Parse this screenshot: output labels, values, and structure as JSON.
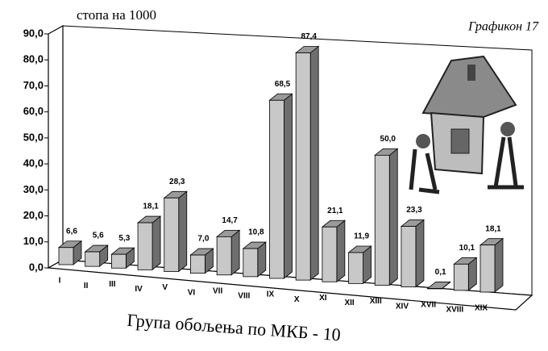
{
  "chart_data": {
    "type": "bar",
    "ylabel": "стопа на 1000",
    "annotation": "Графикон 17",
    "xlabel": "Група обољења по МКБ - 10",
    "categories": [
      "I",
      "II",
      "III",
      "IV",
      "V",
      "VI",
      "VII",
      "VIII",
      "IX",
      "X",
      "XI",
      "XII",
      "XIII",
      "XIV",
      "XVII",
      "XVIII",
      "XIX"
    ],
    "values": [
      6.6,
      5.6,
      5.3,
      18.1,
      28.3,
      7.0,
      14.7,
      10.8,
      68.5,
      87.4,
      21.1,
      11.9,
      50.0,
      23.3,
      0.1,
      10.1,
      18.1
    ],
    "value_labels": [
      "6,6",
      "5,6",
      "5,3",
      "18,1",
      "28,3",
      "7,0",
      "14,7",
      "10,8",
      "68,5",
      "87,4",
      "21,1",
      "11,9",
      "50,0",
      "23,3",
      "0,1",
      "10,1",
      "18,1"
    ],
    "color": "#c8c8c8",
    "ylim": [
      0,
      90
    ],
    "yticks": [
      {
        "value": 0,
        "label": "0,0"
      },
      {
        "value": 10,
        "label": "10,0"
      },
      {
        "value": 20,
        "label": "20,0"
      },
      {
        "value": 30,
        "label": "30,0"
      },
      {
        "value": 40,
        "label": "40,0"
      },
      {
        "value": 50,
        "label": "50,0"
      },
      {
        "value": 60,
        "label": "60,0"
      },
      {
        "value": 70,
        "label": "70,0"
      },
      {
        "value": 80,
        "label": "80,0"
      },
      {
        "value": 90,
        "label": "90,0"
      }
    ]
  }
}
